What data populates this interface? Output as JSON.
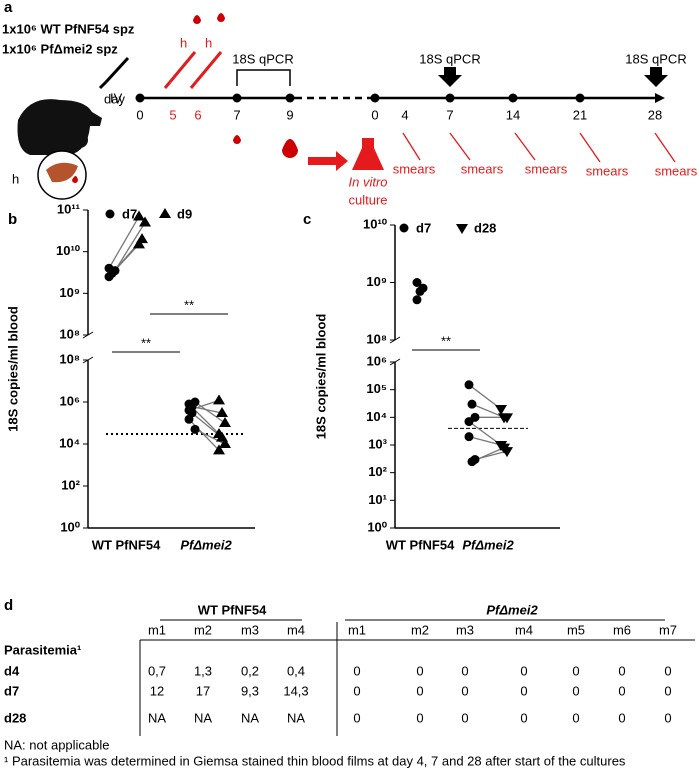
{
  "panel_a": {
    "label": "a",
    "inoculum": [
      "1x10⁶ WT PfNF54 spz",
      "1x10⁶ PfΔmei2 spz"
    ],
    "route": "IV",
    "blood_marks": [
      "h",
      "h"
    ],
    "liver_label": "h",
    "day_label": "day",
    "days": [
      0,
      5,
      6,
      7,
      9,
      0,
      4,
      7,
      14,
      21,
      28
    ],
    "qpcr_labels": [
      "18S qPCR",
      "18S qPCR",
      "18S qPCR"
    ],
    "culture": [
      "In vitro",
      "culture"
    ],
    "smears": [
      "smears",
      "smears",
      "smears",
      "smears",
      "smears"
    ]
  },
  "chart_data": [
    {
      "panel_label": "b",
      "type": "scatter",
      "ylabel": "18S copies/ml blood",
      "categories": [
        "WT PfNF54",
        "PfΔmei2"
      ],
      "series": [
        {
          "name": "d7",
          "marker": "circle",
          "color": "#000000",
          "values": [
            [
              2500000000,
              3000000000,
              3500000000,
              4000000000
            ],
            [
              400000,
              600000,
              1000000,
              800000,
              300000,
              50000,
              150000
            ]
          ]
        },
        {
          "name": "d9",
          "marker": "triangle",
          "color": "#000000",
          "values": [
            [
              15000000000,
              20000000000,
              50000000000,
              70000000000
            ],
            [
              1200000,
              300000,
              100000,
              30000,
              20000,
              10000,
              5000
            ]
          ]
        }
      ],
      "ylog": true,
      "ylim_upper": [
        100000000,
        100000000000
      ],
      "yticks_upper": [
        {
          "value": 100000000,
          "label": "10⁸"
        },
        {
          "value": 1000000000,
          "label": "10⁹"
        },
        {
          "value": 10000000000,
          "label": "10¹⁰"
        },
        {
          "value": 100000000000,
          "label": "10¹¹"
        }
      ],
      "ylim_lower": [
        1,
        100000000
      ],
      "yticks_lower": [
        {
          "value": 1,
          "label": "10⁰"
        },
        {
          "value": 100,
          "label": "10²"
        },
        {
          "value": 10000,
          "label": "10⁴"
        },
        {
          "value": 1000000,
          "label": "10⁶"
        },
        {
          "value": 100000000,
          "label": "10⁸"
        }
      ],
      "threshold": 30000,
      "significance": [
        "**",
        "**"
      ]
    },
    {
      "panel_label": "c",
      "type": "scatter",
      "ylabel": "18S copies/ml blood",
      "categories": [
        "WT PfNF54",
        "PfΔmei2"
      ],
      "series": [
        {
          "name": "d7",
          "marker": "circle",
          "color": "#000000",
          "values": [
            [
              500000000,
              700000000,
              800000000,
              1000000000
            ],
            [
              150000,
              30000,
              10000,
              7000,
              250,
              300,
              2000
            ]
          ]
        },
        {
          "name": "d28",
          "marker": "invtriangle",
          "color": "#000000",
          "values": [
            [],
            [
              20000,
              10000,
              10000,
              1000,
              800,
              600,
              1000
            ]
          ]
        }
      ],
      "ylog": true,
      "ylim_upper": [
        100000000,
        10000000000
      ],
      "yticks_upper": [
        {
          "value": 100000000,
          "label": "10⁸"
        },
        {
          "value": 1000000000,
          "label": "10⁹"
        },
        {
          "value": 10000000000,
          "label": "10¹⁰"
        }
      ],
      "ylim_lower": [
        1,
        1000000
      ],
      "yticks_lower": [
        {
          "value": 1,
          "label": "10⁰"
        },
        {
          "value": 10,
          "label": "10¹"
        },
        {
          "value": 100,
          "label": "10²"
        },
        {
          "value": 1000,
          "label": "10³"
        },
        {
          "value": 10000,
          "label": "10⁴"
        },
        {
          "value": 100000,
          "label": "10⁵"
        },
        {
          "value": 1000000,
          "label": "10⁶"
        }
      ],
      "threshold": 4000,
      "significance": [
        "**"
      ]
    }
  ],
  "table": {
    "label": "d",
    "groups": [
      "WT PfNF54",
      "PfΔmei2"
    ],
    "columns": [
      "m1",
      "m2",
      "m3",
      "m4",
      "m1",
      "m2",
      "m3",
      "m4",
      "m5",
      "m6",
      "m7"
    ],
    "section": "Parasitemia¹",
    "rows": [
      {
        "name": "d4",
        "cells": [
          "0,7",
          "1,3",
          "0,2",
          "0,4",
          0,
          0,
          0,
          0,
          0,
          0,
          0
        ]
      },
      {
        "name": "d7",
        "cells": [
          "12",
          "17",
          "9,3",
          "14,3",
          0,
          0,
          0,
          0,
          0,
          0,
          0
        ]
      },
      {
        "name": "d28",
        "cells": [
          "NA",
          "NA",
          "NA",
          "NA",
          0,
          0,
          0,
          0,
          0,
          0,
          0
        ]
      }
    ],
    "footnotes": [
      "NA: not applicable",
      "¹ Parasitemia was determined in Giemsa stained thin blood films at day 4, 7 and 28 after start of the cultures"
    ]
  }
}
